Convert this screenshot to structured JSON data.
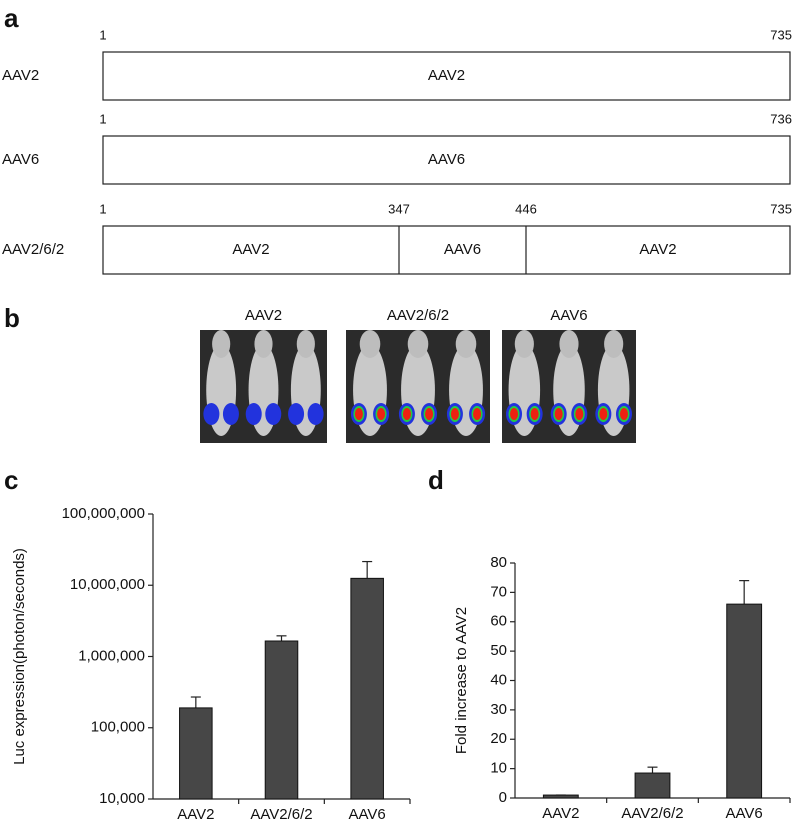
{
  "panel_labels": [
    "a",
    "b",
    "c",
    "d"
  ],
  "constructs": [
    {
      "name": "AAV2",
      "positions": [
        1,
        735
      ],
      "segments": [
        "AAV2"
      ]
    },
    {
      "name": "AAV6",
      "positions": [
        1,
        736
      ],
      "segments": [
        "AAV6"
      ]
    },
    {
      "name": "AAV2/6/2",
      "positions": [
        1,
        347,
        446,
        735
      ],
      "segments": [
        "AAV2",
        "AAV6",
        "AAV2"
      ]
    }
  ],
  "images": [
    "AAV2",
    "AAV2/6/2",
    "AAV6"
  ],
  "chart_data": [
    {
      "type": "bar",
      "y_label": "Luc expression(photon/seconds)",
      "categories": [
        "AAV2",
        "AAV2/6/2",
        "AAV6"
      ],
      "values": [
        190000,
        1650000,
        12500000
      ],
      "errors": [
        80000,
        300000,
        9000000
      ],
      "color": "#474747",
      "log_scale": true,
      "ylim": [
        10000,
        100000000
      ],
      "yticks": [
        {
          "value": 10000,
          "label": "10,000"
        },
        {
          "value": 100000,
          "label": "100,000"
        },
        {
          "value": 1000000,
          "label": "1,000,000"
        },
        {
          "value": 10000000,
          "label": "10,000,000"
        },
        {
          "value": 100000000,
          "label": "100,000,000"
        }
      ]
    },
    {
      "type": "bar",
      "y_label": "Fold increase to AAV2",
      "categories": [
        "AAV2",
        "AAV2/6/2",
        "AAV6"
      ],
      "values": [
        1,
        8.5,
        66
      ],
      "errors": [
        0,
        2,
        8
      ],
      "color": "#474747",
      "log_scale": false,
      "ylim": [
        0,
        80
      ],
      "yticks": [
        0,
        10,
        20,
        30,
        40,
        50,
        60,
        70,
        80
      ]
    }
  ]
}
